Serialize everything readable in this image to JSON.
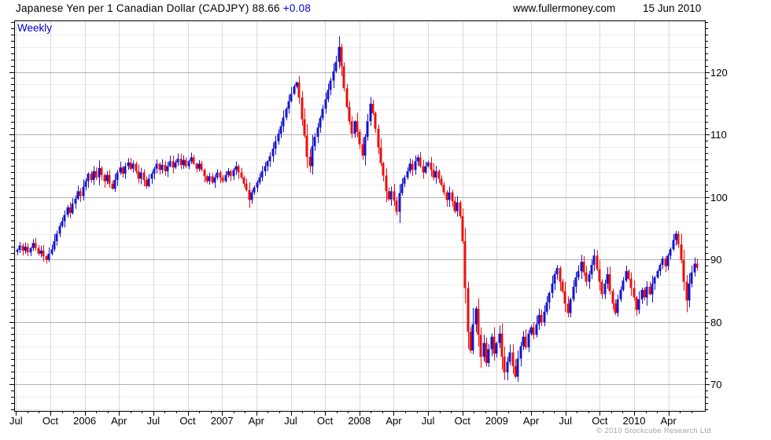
{
  "header": {
    "title_instrument": "Japanese Yen per 1 Canadian Dollar (CADJPY)",
    "title_price": "88.66",
    "title_change": "+0.08",
    "site": "www.fullermoney.com",
    "date": "15 Jun 2010"
  },
  "chart": {
    "timeframe_label": "Weekly",
    "copyright": "© 2010 Stockcube Research Ltd"
  },
  "colors": {
    "up_candle": "#1414cf",
    "down_candle": "#ea0f0f",
    "accent_blue": "#0000cc",
    "grid_minor": "#ededed",
    "grid_vertical": "#d9d9d9",
    "grid_major": "#b2b2b2",
    "axis_black": "#000000",
    "copyright_gray": "#a3a3a3"
  },
  "chart_data": {
    "type": "candlestick",
    "title": "Japanese Yen per 1 Canadian Dollar (CADJPY)",
    "timeframe": "Weekly",
    "last_price": 88.66,
    "change": 0.08,
    "x_range": "Jul 2005 - Jun 2010",
    "ylim": [
      65.7,
      128.3
    ],
    "y_ticks": [
      70,
      80,
      90,
      100,
      110,
      120
    ],
    "y_minor_step": 1,
    "y_grid_minor_step": 2,
    "months_total": 60,
    "x_ticks": [
      {
        "label": "Jul",
        "month": 0
      },
      {
        "label": "Oct",
        "month": 3
      },
      {
        "label": "2006",
        "month": 6
      },
      {
        "label": "Apr",
        "month": 9
      },
      {
        "label": "Jul",
        "month": 12
      },
      {
        "label": "Oct",
        "month": 15
      },
      {
        "label": "2007",
        "month": 18
      },
      {
        "label": "Apr",
        "month": 21
      },
      {
        "label": "Jul",
        "month": 24
      },
      {
        "label": "Oct",
        "month": 27
      },
      {
        "label": "2008",
        "month": 30
      },
      {
        "label": "Apr",
        "month": 33
      },
      {
        "label": "Jul",
        "month": 36
      },
      {
        "label": "Oct",
        "month": 39
      },
      {
        "label": "2009",
        "month": 42
      },
      {
        "label": "Apr",
        "month": 45
      },
      {
        "label": "Jul",
        "month": 48
      },
      {
        "label": "Oct",
        "month": 51
      },
      {
        "label": "2010",
        "month": 54
      },
      {
        "label": "Apr",
        "month": 57
      }
    ],
    "weekly_closes": [
      91.5,
      92.2,
      91.4,
      92.0,
      91.1,
      91.8,
      92.6,
      91.8,
      90.9,
      91.4,
      90.5,
      89.9,
      90.9,
      91.6,
      92.9,
      94.1,
      95.3,
      96.1,
      97.1,
      98.3,
      97.4,
      98.9,
      99.7,
      100.9,
      100.1,
      101.6,
      102.5,
      103.7,
      102.7,
      104.1,
      103.1,
      104.6,
      103.5,
      102.5,
      103.5,
      102.1,
      101.3,
      102.7,
      103.9,
      104.7,
      103.7,
      104.9,
      105.5,
      104.5,
      105.3,
      104.1,
      102.9,
      103.9,
      102.7,
      101.7,
      102.9,
      103.7,
      104.5,
      105.3,
      104.3,
      105.1,
      104.1,
      104.9,
      105.7,
      104.7,
      105.5,
      106.1,
      105.1,
      105.9,
      104.9,
      105.7,
      106.3,
      105.3,
      104.5,
      105.3,
      104.3,
      103.3,
      102.5,
      103.3,
      102.3,
      103.1,
      103.9,
      103.1,
      102.5,
      103.5,
      104.1,
      103.3,
      104.3,
      104.9,
      103.9,
      103.1,
      102.1,
      101.1,
      99.5,
      100.7,
      101.5,
      102.3,
      103.1,
      104.1,
      104.9,
      105.7,
      106.5,
      107.7,
      108.9,
      110.1,
      111.3,
      112.7,
      114.1,
      115.3,
      116.5,
      117.7,
      118.3,
      115.9,
      112.4,
      109.8,
      106.4,
      104.9,
      108.1,
      109.6,
      111.1,
      112.6,
      114.1,
      115.6,
      117.1,
      118.6,
      120.1,
      121.6,
      124.0,
      120.9,
      117.4,
      114.4,
      112.1,
      110.1,
      112.1,
      110.4,
      108.4,
      106.6,
      109.6,
      112.1,
      114.9,
      113.4,
      110.9,
      107.9,
      105.4,
      103.4,
      100.9,
      99.6,
      100.9,
      99.4,
      97.6,
      100.6,
      102.1,
      103.1,
      104.1,
      105.3,
      104.3,
      105.7,
      106.3,
      104.9,
      103.9,
      104.9,
      105.5,
      104.3,
      103.1,
      104.1,
      102.9,
      101.9,
      100.7,
      99.5,
      100.7,
      99.3,
      97.7,
      99.1,
      96.9,
      92.9,
      85.4,
      78.4,
      75.4,
      79.6,
      82.1,
      77.9,
      74.4,
      76.6,
      73.4,
      75.6,
      77.6,
      74.9,
      76.6,
      78.1,
      74.4,
      71.9,
      73.6,
      75.1,
      72.9,
      71.2,
      74.1,
      76.1,
      77.6,
      75.9,
      78.1,
      79.1,
      77.9,
      79.6,
      81.1,
      79.9,
      81.6,
      83.1,
      84.6,
      86.1,
      87.6,
      88.6,
      86.4,
      84.9,
      82.9,
      81.4,
      83.6,
      85.6,
      87.1,
      88.1,
      89.6,
      87.9,
      86.4,
      87.6,
      89.1,
      90.6,
      88.4,
      86.4,
      84.4,
      86.1,
      87.6,
      84.9,
      82.9,
      81.4,
      83.6,
      85.1,
      86.6,
      88.1,
      86.9,
      85.4,
      83.9,
      81.9,
      83.6,
      85.1,
      83.9,
      85.6,
      84.4,
      86.1,
      87.1,
      88.1,
      89.1,
      90.1,
      88.9,
      90.6,
      91.6,
      93.1,
      94.1,
      92.4,
      89.9,
      86.4,
      83.4,
      86.1,
      87.9,
      89.3,
      88.66
    ]
  }
}
